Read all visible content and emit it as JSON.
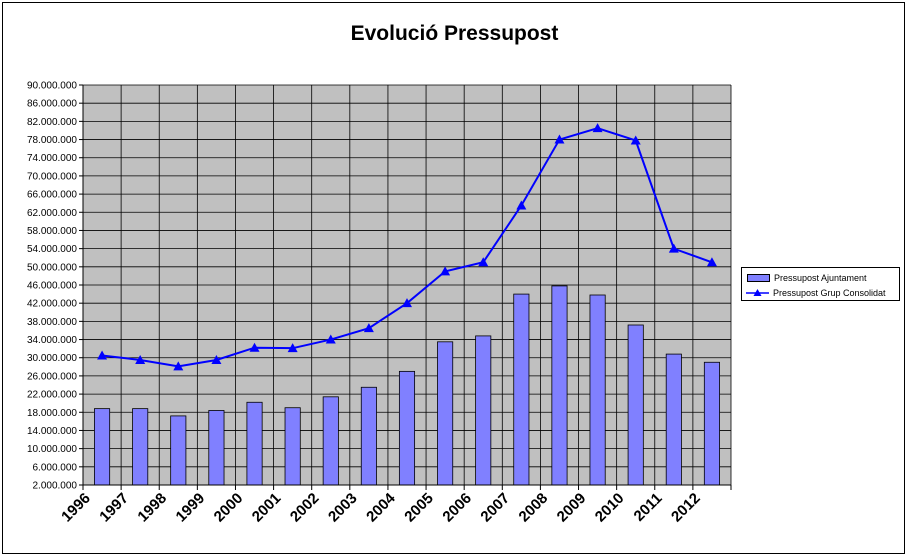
{
  "chart_data": {
    "type": "bar",
    "title": "Evolució Pressupost",
    "categories": [
      "1996",
      "1997",
      "1998",
      "1999",
      "2000",
      "2001",
      "2002",
      "2003",
      "2004",
      "2005",
      "2006",
      "2007",
      "2008",
      "2009",
      "2010",
      "2011",
      "2012"
    ],
    "series": [
      {
        "name": "Pressupost Ajuntament",
        "type": "bar",
        "color": "#8080ff",
        "values": [
          18800000,
          18800000,
          17200000,
          18400000,
          20200000,
          19000000,
          21400000,
          23500000,
          27000000,
          33500000,
          34800000,
          44000000,
          45800000,
          43800000,
          37200000,
          30800000,
          29000000
        ]
      },
      {
        "name": "Pressupost Grup Consolidat",
        "type": "line",
        "marker": "triangle",
        "color": "#0000ff",
        "values": [
          30500000,
          29500000,
          28100000,
          29500000,
          32200000,
          32100000,
          34000000,
          36500000,
          42000000,
          49000000,
          51000000,
          63500000,
          78000000,
          80500000,
          77800000,
          54000000,
          51000000
        ]
      }
    ],
    "y_ticks": [
      "2.000.000",
      "6.000.000",
      "10.000.000",
      "14.000.000",
      "18.000.000",
      "22.000.000",
      "26.000.000",
      "30.000.000",
      "34.000.000",
      "38.000.000",
      "42.000.000",
      "46.000.000",
      "50.000.000",
      "54.000.000",
      "58.000.000",
      "62.000.000",
      "66.000.000",
      "70.000.000",
      "74.000.000",
      "78.000.000",
      "82.000.000",
      "86.000.000",
      "90.000.000"
    ],
    "ylim": [
      2000000,
      90000000
    ],
    "grid": true,
    "plot_background": "#c0c0c0",
    "legend_position": "right"
  }
}
